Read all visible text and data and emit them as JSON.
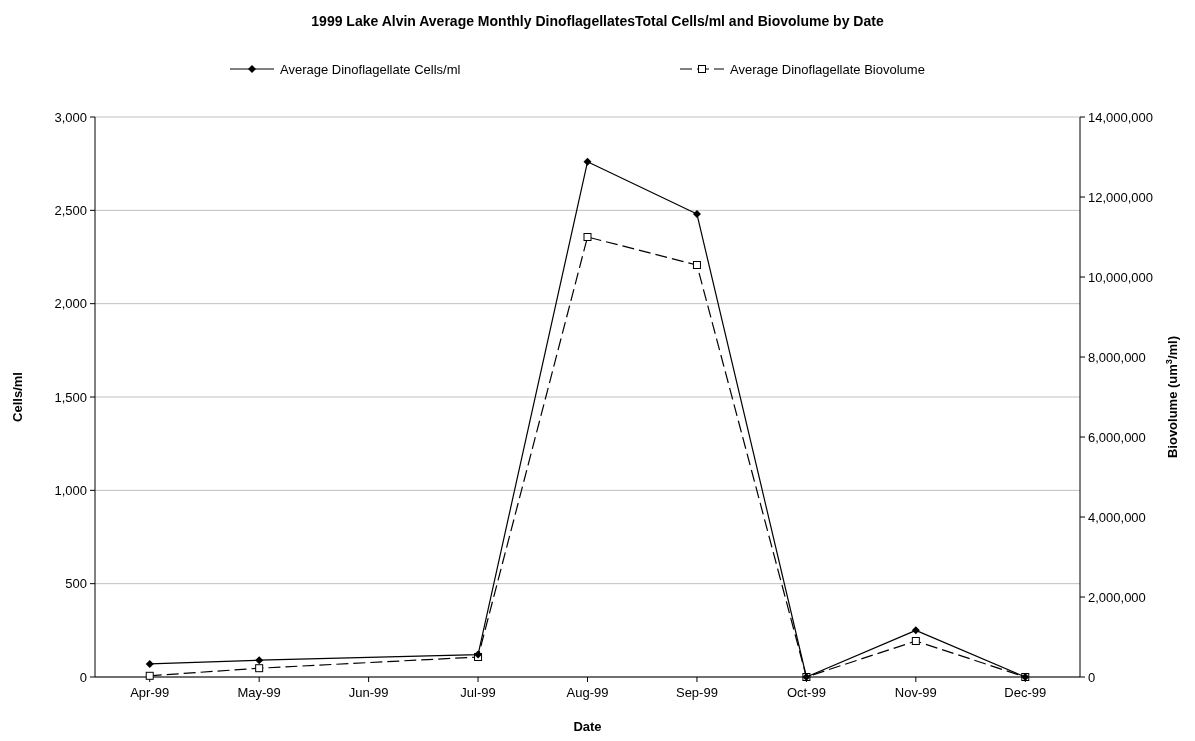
{
  "chart_data": {
    "type": "line",
    "title": "1999 Lake Alvin Average Monthly DinoflagellatesTotal Cells/ml and Biovolume by Date",
    "xlabel": "Date",
    "ylabel": "Cells/ml",
    "y2label": "Biovolume (um$^{3}$/ml)",
    "categories": [
      "Apr-99",
      "May-99",
      "Jun-99",
      "Jul-99",
      "Aug-99",
      "Sep-99",
      "Oct-99",
      "Nov-99",
      "Dec-99"
    ],
    "series": [
      {
        "name": "Average Dinoflagellate Cells/ml",
        "color": "#000000",
        "marker": "diamond",
        "line_style": "solid",
        "values": [
          70,
          90,
          null,
          120,
          2760,
          2480,
          0,
          250,
          0
        ]
      },
      {
        "name": "Average Dinoflagellate Biovolume",
        "color": "#000000",
        "marker": "square",
        "line_style": "dashed",
        "axis": "y2",
        "values": [
          30000,
          220000,
          null,
          500000,
          11000000,
          10300000,
          0,
          900000,
          0
        ]
      }
    ],
    "ylim": [
      0,
      3000
    ],
    "yticks": [
      {
        "value": 0,
        "label": "0"
      },
      {
        "value": 500,
        "label": "500"
      },
      {
        "value": 1000,
        "label": "1,000"
      },
      {
        "value": 1500,
        "label": "1,500"
      },
      {
        "value": 2000,
        "label": "2,000"
      },
      {
        "value": 2500,
        "label": "2,500"
      },
      {
        "value": 3000,
        "label": "3,000"
      }
    ],
    "y2lim": [
      0,
      14000000
    ],
    "y2ticks": [
      {
        "value": 0,
        "label": "0"
      },
      {
        "value": 2000000,
        "label": "2,000,000"
      },
      {
        "value": 4000000,
        "label": "4,000,000"
      },
      {
        "value": 6000000,
        "label": "6,000,000"
      },
      {
        "value": 8000000,
        "label": "8,000,000"
      },
      {
        "value": 10000000,
        "label": "10,000,000"
      },
      {
        "value": 12000000,
        "label": "12,000,000"
      },
      {
        "value": 14000000,
        "label": "14,000,000"
      }
    ],
    "grid": "y",
    "legend": "top"
  }
}
